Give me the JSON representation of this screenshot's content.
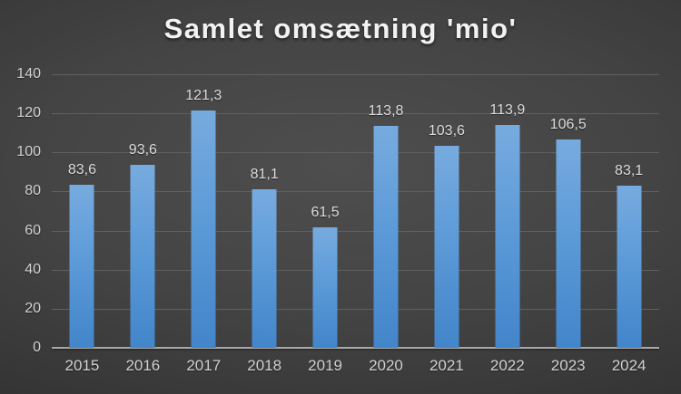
{
  "title": "Samlet omsætning 'mio'",
  "colors": {
    "bar_top": "#77abdf",
    "bar_bottom": "#4285ca",
    "background_center": "#4e4e4e",
    "background_edge": "#1f1f1f",
    "gridline": "#606060",
    "axis_line": "#a9a9a9",
    "tick_label": "#d2d2d2",
    "value_label": "#dcdcdc",
    "title_color": "#f2f2f2"
  },
  "chart_data": {
    "type": "bar",
    "title": "Samlet omsætning 'mio'",
    "categories": [
      "2015",
      "2016",
      "2017",
      "2018",
      "2019",
      "2020",
      "2021",
      "2022",
      "2023",
      "2024"
    ],
    "values": [
      83.6,
      93.6,
      121.3,
      81.1,
      61.5,
      113.8,
      103.6,
      113.9,
      106.5,
      83.1
    ],
    "value_labels": [
      "83,6",
      "93,6",
      "121,3",
      "81,1",
      "61,5",
      "113,8",
      "103,6",
      "113,9",
      "106,5",
      "83,1"
    ],
    "xlabel": "",
    "ylabel": "",
    "ylim": [
      0,
      140
    ],
    "yticks": [
      0,
      20,
      40,
      60,
      80,
      100,
      120,
      140
    ],
    "grid": true,
    "legend": false,
    "decimal_separator": ","
  }
}
